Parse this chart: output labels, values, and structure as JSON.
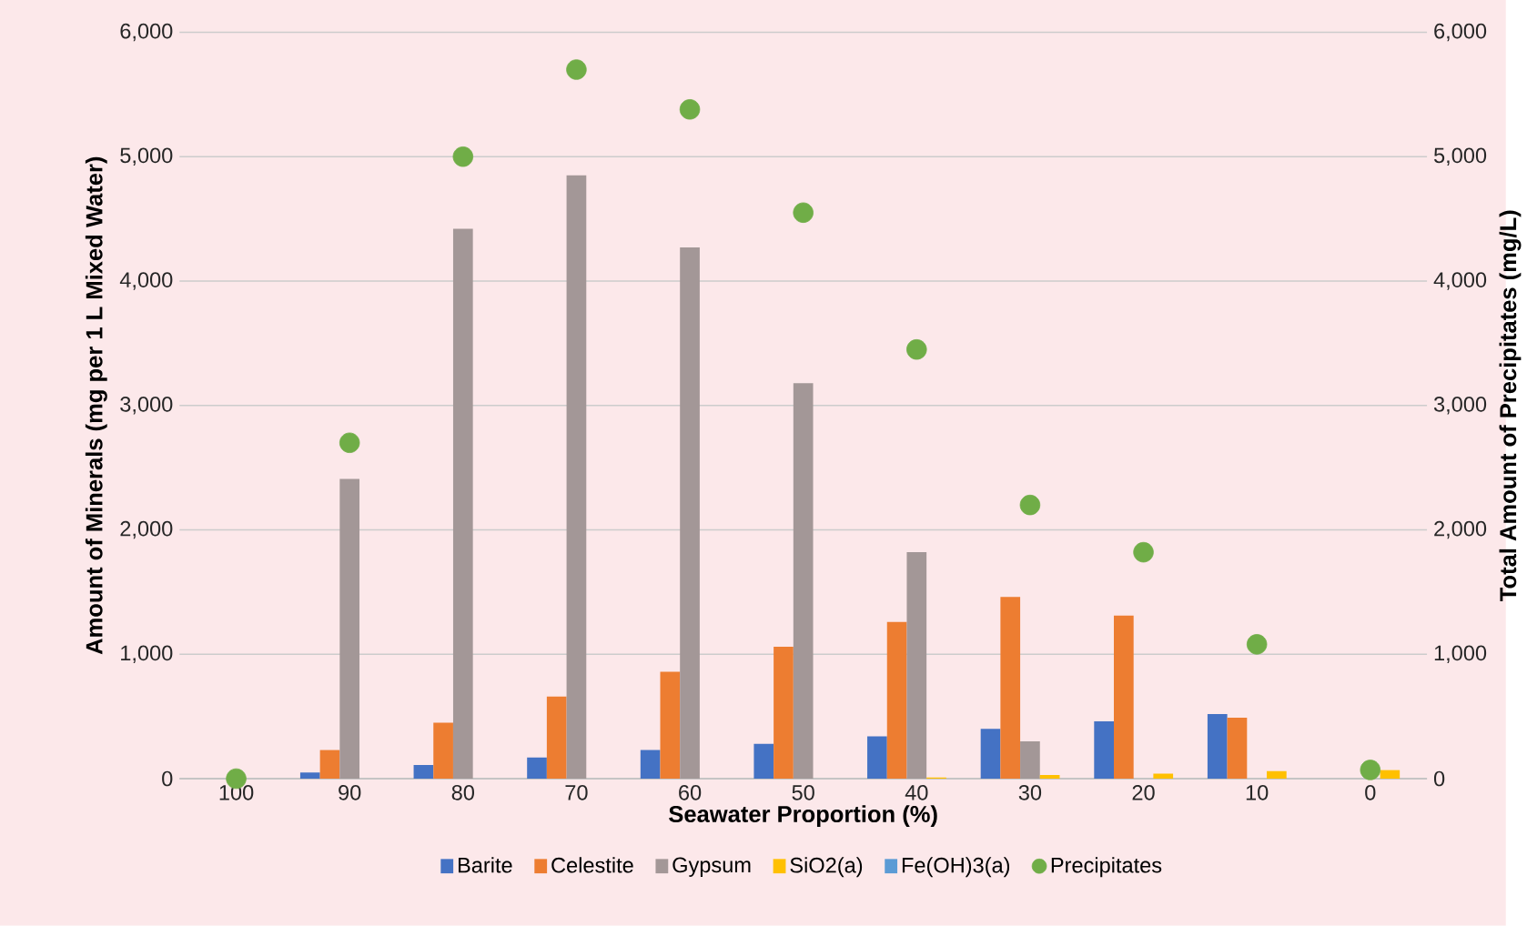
{
  "chart_data": {
    "type": "bar",
    "xlabel": "Seawater Proportion (%)",
    "ylabel": "Amount of Minerals (mg per 1 L Mixed Water)",
    "y2label": "Total Amount of Precipitates (mg/L)",
    "categories": [
      "100",
      "90",
      "80",
      "70",
      "60",
      "50",
      "40",
      "30",
      "20",
      "10",
      "0"
    ],
    "series": [
      {
        "name": "Barite",
        "color": "#4472c4",
        "values": [
          0,
          50,
          110,
          170,
          230,
          280,
          340,
          400,
          460,
          520,
          0
        ]
      },
      {
        "name": "Celestite",
        "color": "#ed7d31",
        "values": [
          0,
          230,
          450,
          660,
          860,
          1060,
          1260,
          1460,
          1310,
          490,
          0
        ]
      },
      {
        "name": "Gypsum",
        "color": "#a39797",
        "values": [
          0,
          2410,
          4420,
          4850,
          4270,
          3180,
          1820,
          300,
          0,
          0,
          0
        ]
      },
      {
        "name": "SiO2(a)",
        "color": "#ffc000",
        "values": [
          0,
          0,
          0,
          0,
          0,
          0,
          10,
          30,
          40,
          60,
          70
        ]
      },
      {
        "name": "Fe(OH)3(a)",
        "color": "#5b9bd5",
        "values": [
          0,
          0,
          0,
          0,
          0,
          0,
          0,
          0,
          0,
          0,
          0
        ]
      },
      {
        "name": "Precipitates",
        "type": "scatter",
        "axis": "y2",
        "marker": "circle",
        "color": "#70ad47",
        "values": [
          0,
          2700,
          5000,
          5700,
          5380,
          4550,
          3450,
          2200,
          1820,
          1080,
          70
        ]
      }
    ],
    "ylim": [
      0,
      6000
    ],
    "yticks": [
      0,
      {
        "value": 1000,
        "label": "1,000"
      },
      {
        "value": 2000,
        "label": "2,000"
      },
      {
        "value": 3000,
        "label": "3,000"
      },
      {
        "value": 4000,
        "label": "4,000"
      },
      {
        "value": 5000,
        "label": "5,000"
      },
      {
        "value": 6000,
        "label": "6,000"
      }
    ],
    "y2lim": [
      0,
      6000
    ],
    "y2ticks": [
      0,
      {
        "value": 1000,
        "label": "1,000"
      },
      {
        "value": 2000,
        "label": "2,000"
      },
      {
        "value": 3000,
        "label": "3,000"
      },
      {
        "value": 4000,
        "label": "4,000"
      },
      {
        "value": 5000,
        "label": "5,000"
      },
      {
        "value": 6000,
        "label": "6,000"
      }
    ],
    "grid": "y",
    "legend": "bottom"
  }
}
